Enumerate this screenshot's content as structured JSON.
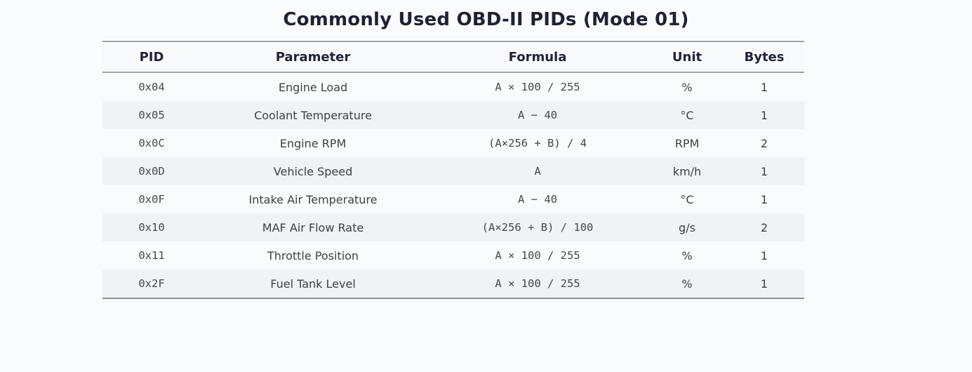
{
  "page": {
    "title": "Commonly Used OBD-II PIDs (Mode 01)",
    "background_color": "#fafbfd"
  },
  "table": {
    "columns": [
      "PID",
      "Parameter",
      "Formula",
      "Unit",
      "Bytes"
    ],
    "rows": [
      {
        "pid": "0x04",
        "parameter": "Engine Load",
        "formula": "A × 100 / 255",
        "unit": "%",
        "bytes": "1"
      },
      {
        "pid": "0x05",
        "parameter": "Coolant Temperature",
        "formula": "A − 40",
        "unit": "°C",
        "bytes": "1"
      },
      {
        "pid": "0x0C",
        "parameter": "Engine RPM",
        "formula": "(A×256 + B) / 4",
        "unit": "RPM",
        "bytes": "2"
      },
      {
        "pid": "0x0D",
        "parameter": "Vehicle Speed",
        "formula": "A",
        "unit": "km/h",
        "bytes": "1"
      },
      {
        "pid": "0x0F",
        "parameter": "Intake Air Temperature",
        "formula": "A − 40",
        "unit": "°C",
        "bytes": "1"
      },
      {
        "pid": "0x10",
        "parameter": "MAF Air Flow Rate",
        "formula": "(A×256 + B) / 100",
        "unit": "g/s",
        "bytes": "2"
      },
      {
        "pid": "0x11",
        "parameter": "Throttle Position",
        "formula": "A × 100 / 255",
        "unit": "%",
        "bytes": "1"
      },
      {
        "pid": "0x2F",
        "parameter": "Fuel Tank Level",
        "formula": "A × 100 / 255",
        "unit": "%",
        "bytes": "1"
      }
    ],
    "colors": {
      "stripe_row": "#eff3f6",
      "border": "#a2a4a6",
      "header_text": "#20243a",
      "body_text": "#3d4147"
    }
  }
}
